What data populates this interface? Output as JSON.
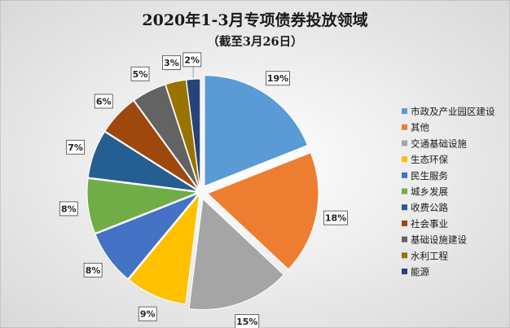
{
  "chart_data": {
    "type": "pie",
    "title": "2020年1-3月专项债券投放领域",
    "subtitle": "（截至3月26日）",
    "categories": [
      "市政及产业园区建设",
      "其他",
      "交通基础设施",
      "生态环保",
      "民生服务",
      "城乡发展",
      "收费公路",
      "社会事业",
      "基础设施建设",
      "水利工程",
      "能源"
    ],
    "values": [
      19,
      18,
      15,
      9,
      8,
      8,
      7,
      6,
      5,
      3,
      2
    ],
    "labels": [
      "19%",
      "18%",
      "15%",
      "9%",
      "8%",
      "8%",
      "7%",
      "6%",
      "5%",
      "3%",
      "2%"
    ],
    "colors": [
      "#5b9bd5",
      "#ed7d31",
      "#a5a5a5",
      "#ffc000",
      "#4472c4",
      "#70ad47",
      "#255e91",
      "#9e480e",
      "#636363",
      "#997300",
      "#264478"
    ],
    "legend_position": "right",
    "exploded": true
  }
}
